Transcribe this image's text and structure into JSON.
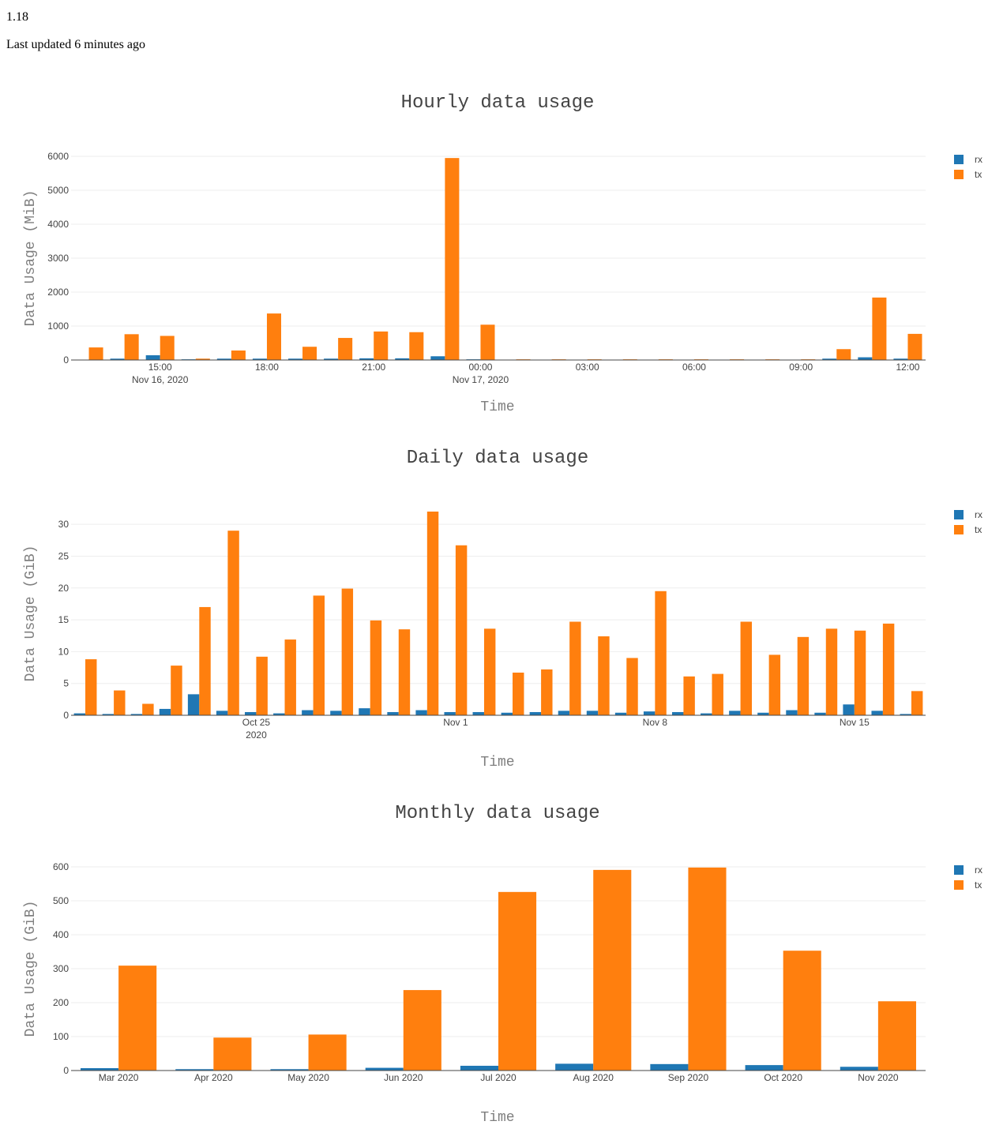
{
  "header": {
    "version": "1.18",
    "last_updated": "Last updated 6 minutes ago"
  },
  "colors": {
    "rx": "#1f77b4",
    "tx": "#ff7f0e",
    "grid": "#eeeeee",
    "axis": "#444444"
  },
  "chart_data": [
    {
      "type": "bar",
      "title": "Hourly data usage",
      "xlabel": "Time",
      "ylabel": "Data Usage (MiB)",
      "ylim": [
        0,
        6000
      ],
      "yticks": [
        0,
        1000,
        2000,
        3000,
        4000,
        5000,
        6000
      ],
      "xticks": [
        {
          "index": 2.5,
          "label": "15:00",
          "sub": "Nov 16, 2020"
        },
        {
          "index": 5.5,
          "label": "18:00",
          "sub": ""
        },
        {
          "index": 8.5,
          "label": "21:00",
          "sub": ""
        },
        {
          "index": 11.5,
          "label": "00:00",
          "sub": "Nov 17, 2020"
        },
        {
          "index": 14.5,
          "label": "03:00",
          "sub": ""
        },
        {
          "index": 17.5,
          "label": "06:00",
          "sub": ""
        },
        {
          "index": 20.5,
          "label": "09:00",
          "sub": ""
        },
        {
          "index": 23.5,
          "label": "12:00",
          "sub": ""
        }
      ],
      "categories": [
        "13:00",
        "14:00",
        "15:00",
        "16:00",
        "17:00",
        "18:00",
        "19:00",
        "20:00",
        "21:00",
        "22:00",
        "23:00",
        "00:00",
        "01:00",
        "02:00",
        "03:00",
        "04:00",
        "05:00",
        "06:00",
        "07:00",
        "08:00",
        "09:00",
        "10:00",
        "11:00",
        "12:00"
      ],
      "series": [
        {
          "name": "rx",
          "values": [
            10,
            40,
            140,
            20,
            40,
            40,
            40,
            40,
            50,
            50,
            110,
            20,
            5,
            5,
            5,
            5,
            5,
            10,
            10,
            10,
            10,
            40,
            80,
            40
          ]
        },
        {
          "name": "tx",
          "values": [
            370,
            760,
            710,
            40,
            280,
            1370,
            390,
            650,
            840,
            820,
            5950,
            1040,
            20,
            20,
            20,
            20,
            20,
            20,
            20,
            20,
            20,
            320,
            1840,
            770
          ]
        }
      ],
      "legend": "top-right"
    },
    {
      "type": "bar",
      "title": "Daily data usage",
      "xlabel": "Time",
      "ylabel": "Data Usage (GiB)",
      "ylim": [
        0,
        32
      ],
      "yticks": [
        0,
        5,
        10,
        15,
        20,
        25,
        30
      ],
      "xticks": [
        {
          "index": 6.5,
          "label": "Oct 25",
          "sub": "2020"
        },
        {
          "index": 13.5,
          "label": "Nov 1",
          "sub": ""
        },
        {
          "index": 20.5,
          "label": "Nov 8",
          "sub": ""
        },
        {
          "index": 27.5,
          "label": "Nov 15",
          "sub": ""
        }
      ],
      "categories": [
        "Oct 18",
        "Oct 19",
        "Oct 20",
        "Oct 21",
        "Oct 22",
        "Oct 23",
        "Oct 24",
        "Oct 25",
        "Oct 26",
        "Oct 27",
        "Oct 28",
        "Oct 29",
        "Oct 30",
        "Oct 31",
        "Nov 1",
        "Nov 2",
        "Nov 3",
        "Nov 4",
        "Nov 5",
        "Nov 6",
        "Nov 7",
        "Nov 8",
        "Nov 9",
        "Nov 10",
        "Nov 11",
        "Nov 12",
        "Nov 13",
        "Nov 14",
        "Nov 15",
        "Nov 16"
      ],
      "series": [
        {
          "name": "rx",
          "values": [
            0.3,
            0.2,
            0.2,
            1.0,
            3.3,
            0.7,
            0.5,
            0.3,
            0.8,
            0.7,
            1.1,
            0.5,
            0.8,
            0.5,
            0.5,
            0.4,
            0.5,
            0.7,
            0.7,
            0.4,
            0.6,
            0.5,
            0.3,
            0.7,
            0.4,
            0.8,
            0.4,
            1.7,
            0.7,
            0.2
          ]
        },
        {
          "name": "tx",
          "values": [
            8.8,
            3.9,
            1.8,
            7.8,
            17.0,
            29.0,
            9.2,
            11.9,
            18.8,
            19.9,
            14.9,
            13.5,
            32.0,
            26.7,
            13.6,
            6.7,
            7.2,
            14.7,
            12.4,
            9.0,
            19.5,
            6.1,
            6.5,
            14.7,
            9.5,
            12.3,
            13.6,
            13.3,
            14.4,
            3.8
          ]
        }
      ],
      "legend": "top-right"
    },
    {
      "type": "bar",
      "title": "Monthly data usage",
      "xlabel": "Time",
      "ylabel": "Data Usage (GiB)",
      "ylim": [
        0,
        600
      ],
      "yticks": [
        0,
        100,
        200,
        300,
        400,
        500,
        600
      ],
      "xticks": [
        {
          "index": 0.5,
          "label": "Mar 2020",
          "sub": ""
        },
        {
          "index": 1.5,
          "label": "Apr 2020",
          "sub": ""
        },
        {
          "index": 2.5,
          "label": "May 2020",
          "sub": ""
        },
        {
          "index": 3.5,
          "label": "Jun 2020",
          "sub": ""
        },
        {
          "index": 4.5,
          "label": "Jul 2020",
          "sub": ""
        },
        {
          "index": 5.5,
          "label": "Aug 2020",
          "sub": ""
        },
        {
          "index": 6.5,
          "label": "Sep 2020",
          "sub": ""
        },
        {
          "index": 7.5,
          "label": "Oct 2020",
          "sub": ""
        },
        {
          "index": 8.5,
          "label": "Nov 2020",
          "sub": ""
        }
      ],
      "categories": [
        "Mar 2020",
        "Apr 2020",
        "May 2020",
        "Jun 2020",
        "Jul 2020",
        "Aug 2020",
        "Sep 2020",
        "Oct 2020",
        "Nov 2020"
      ],
      "series": [
        {
          "name": "rx",
          "values": [
            7,
            4,
            4,
            8,
            14,
            20,
            19,
            16,
            11
          ]
        },
        {
          "name": "tx",
          "values": [
            309,
            97,
            106,
            237,
            526,
            591,
            598,
            353,
            204
          ]
        }
      ],
      "legend": "top-right"
    }
  ]
}
